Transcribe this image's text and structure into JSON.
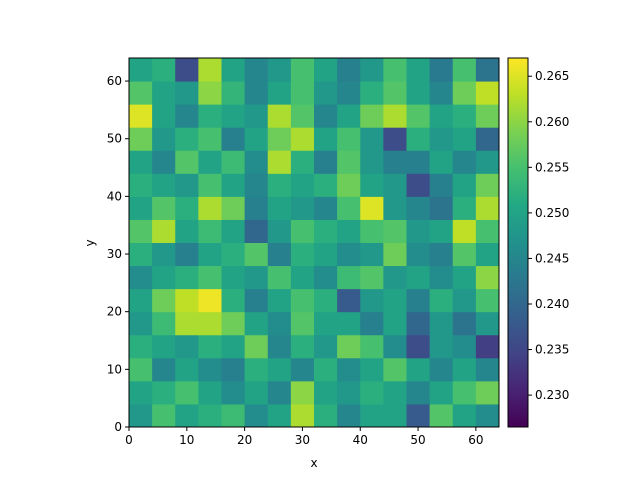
{
  "chart_data": {
    "type": "heatmap",
    "xlabel": "x",
    "ylabel": "y",
    "xlim": [
      0,
      64
    ],
    "ylim": [
      0,
      64
    ],
    "xticks": [
      0,
      10,
      20,
      30,
      40,
      50,
      60
    ],
    "yticks": [
      0,
      10,
      20,
      30,
      40,
      50,
      60
    ],
    "colormap": "viridis",
    "clim": [
      0.2265,
      0.267
    ],
    "cticks": [
      {
        "value": 0.23,
        "label": "0.230"
      },
      0.235,
      {
        "value": 0.24,
        "label": "0.240"
      },
      0.245,
      {
        "value": 0.25,
        "label": "0.250"
      },
      0.255,
      {
        "value": 0.26,
        "label": "0.260"
      },
      0.265
    ],
    "values": [
      [
        0.248,
        0.255,
        0.25,
        0.252,
        0.254,
        0.246,
        0.25,
        0.262,
        0.252,
        0.245,
        0.25,
        0.25,
        0.238,
        0.256,
        0.25,
        0.246
      ],
      [
        0.25,
        0.252,
        0.255,
        0.25,
        0.246,
        0.25,
        0.245,
        0.26,
        0.25,
        0.248,
        0.252,
        0.25,
        0.245,
        0.25,
        0.255,
        0.258
      ],
      [
        0.255,
        0.245,
        0.25,
        0.246,
        0.244,
        0.252,
        0.25,
        0.245,
        0.252,
        0.246,
        0.25,
        0.256,
        0.25,
        0.245,
        0.25,
        0.245
      ],
      [
        0.252,
        0.25,
        0.248,
        0.252,
        0.25,
        0.258,
        0.245,
        0.252,
        0.248,
        0.258,
        0.255,
        0.246,
        0.236,
        0.248,
        0.246,
        0.234
      ],
      [
        0.248,
        0.254,
        0.262,
        0.262,
        0.258,
        0.25,
        0.246,
        0.256,
        0.25,
        0.25,
        0.244,
        0.25,
        0.24,
        0.248,
        0.242,
        0.248
      ],
      [
        0.25,
        0.258,
        0.263,
        0.266,
        0.252,
        0.244,
        0.25,
        0.255,
        0.252,
        0.238,
        0.248,
        0.25,
        0.244,
        0.252,
        0.248,
        0.255
      ],
      [
        0.246,
        0.25,
        0.252,
        0.255,
        0.25,
        0.248,
        0.255,
        0.25,
        0.246,
        0.254,
        0.256,
        0.248,
        0.25,
        0.246,
        0.25,
        0.26
      ],
      [
        0.252,
        0.248,
        0.244,
        0.25,
        0.252,
        0.256,
        0.244,
        0.252,
        0.25,
        0.246,
        0.248,
        0.258,
        0.246,
        0.244,
        0.256,
        0.25
      ],
      [
        0.256,
        0.262,
        0.25,
        0.254,
        0.25,
        0.24,
        0.248,
        0.255,
        0.252,
        0.25,
        0.255,
        0.256,
        0.248,
        0.25,
        0.263,
        0.255
      ],
      [
        0.25,
        0.256,
        0.252,
        0.262,
        0.258,
        0.244,
        0.25,
        0.248,
        0.245,
        0.255,
        0.265,
        0.248,
        0.245,
        0.242,
        0.252,
        0.262
      ],
      [
        0.252,
        0.25,
        0.248,
        0.255,
        0.25,
        0.245,
        0.252,
        0.25,
        0.252,
        0.258,
        0.25,
        0.248,
        0.236,
        0.244,
        0.25,
        0.258
      ],
      [
        0.25,
        0.245,
        0.256,
        0.25,
        0.254,
        0.246,
        0.262,
        0.252,
        0.244,
        0.256,
        0.248,
        0.244,
        0.244,
        0.25,
        0.245,
        0.248
      ],
      [
        0.258,
        0.248,
        0.252,
        0.255,
        0.244,
        0.25,
        0.258,
        0.262,
        0.25,
        0.255,
        0.248,
        0.236,
        0.252,
        0.248,
        0.25,
        0.24
      ],
      [
        0.265,
        0.25,
        0.245,
        0.252,
        0.25,
        0.248,
        0.262,
        0.256,
        0.245,
        0.25,
        0.258,
        0.262,
        0.256,
        0.25,
        0.252,
        0.258
      ],
      [
        0.256,
        0.25,
        0.248,
        0.26,
        0.253,
        0.245,
        0.25,
        0.255,
        0.248,
        0.245,
        0.252,
        0.256,
        0.25,
        0.245,
        0.258,
        0.263
      ],
      [
        0.25,
        0.252,
        0.236,
        0.262,
        0.25,
        0.245,
        0.248,
        0.255,
        0.25,
        0.244,
        0.248,
        0.255,
        0.25,
        0.243,
        0.255,
        0.242
      ]
    ]
  }
}
